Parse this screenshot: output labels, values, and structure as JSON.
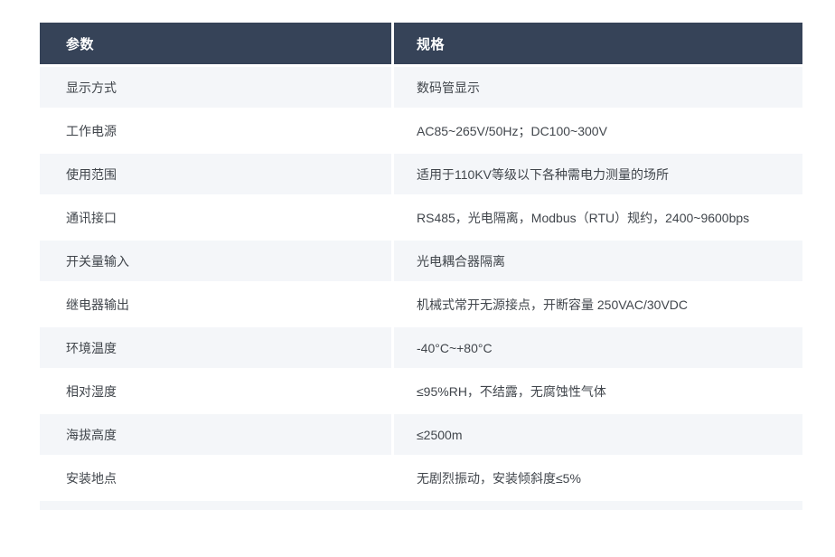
{
  "page": {
    "background_color": "#ffffff"
  },
  "table": {
    "header": {
      "param_label": "参数",
      "spec_label": "规格",
      "bg_color": "#364358",
      "text_color": "#ffffff"
    },
    "stripe_color": "#f4f6f9",
    "body_text_color": "#41464c",
    "rows": [
      {
        "param": "显示方式",
        "spec": "数码管显示"
      },
      {
        "param": "工作电源",
        "spec": "AC85~265V/50Hz；DC100~300V"
      },
      {
        "param": "使用范围",
        "spec": "适用于110KV等级以下各种需电力测量的场所"
      },
      {
        "param": "通讯接口",
        "spec": "RS485，光电隔离，Modbus（RTU）规约，2400~9600bps"
      },
      {
        "param": "开关量输入",
        "spec": "光电耦合器隔离"
      },
      {
        "param": "继电器输出",
        "spec": "机械式常开无源接点，开断容量 250VAC/30VDC"
      },
      {
        "param": "环境温度",
        "spec": "-40°C~+80°C"
      },
      {
        "param": "相对湿度",
        "spec": "≤95%RH，不结露，无腐蚀性气体"
      },
      {
        "param": "海拔高度",
        "spec": "≤2500m"
      },
      {
        "param": "安装地点",
        "spec": "无剧烈振动，安装倾斜度≤5%"
      }
    ]
  }
}
